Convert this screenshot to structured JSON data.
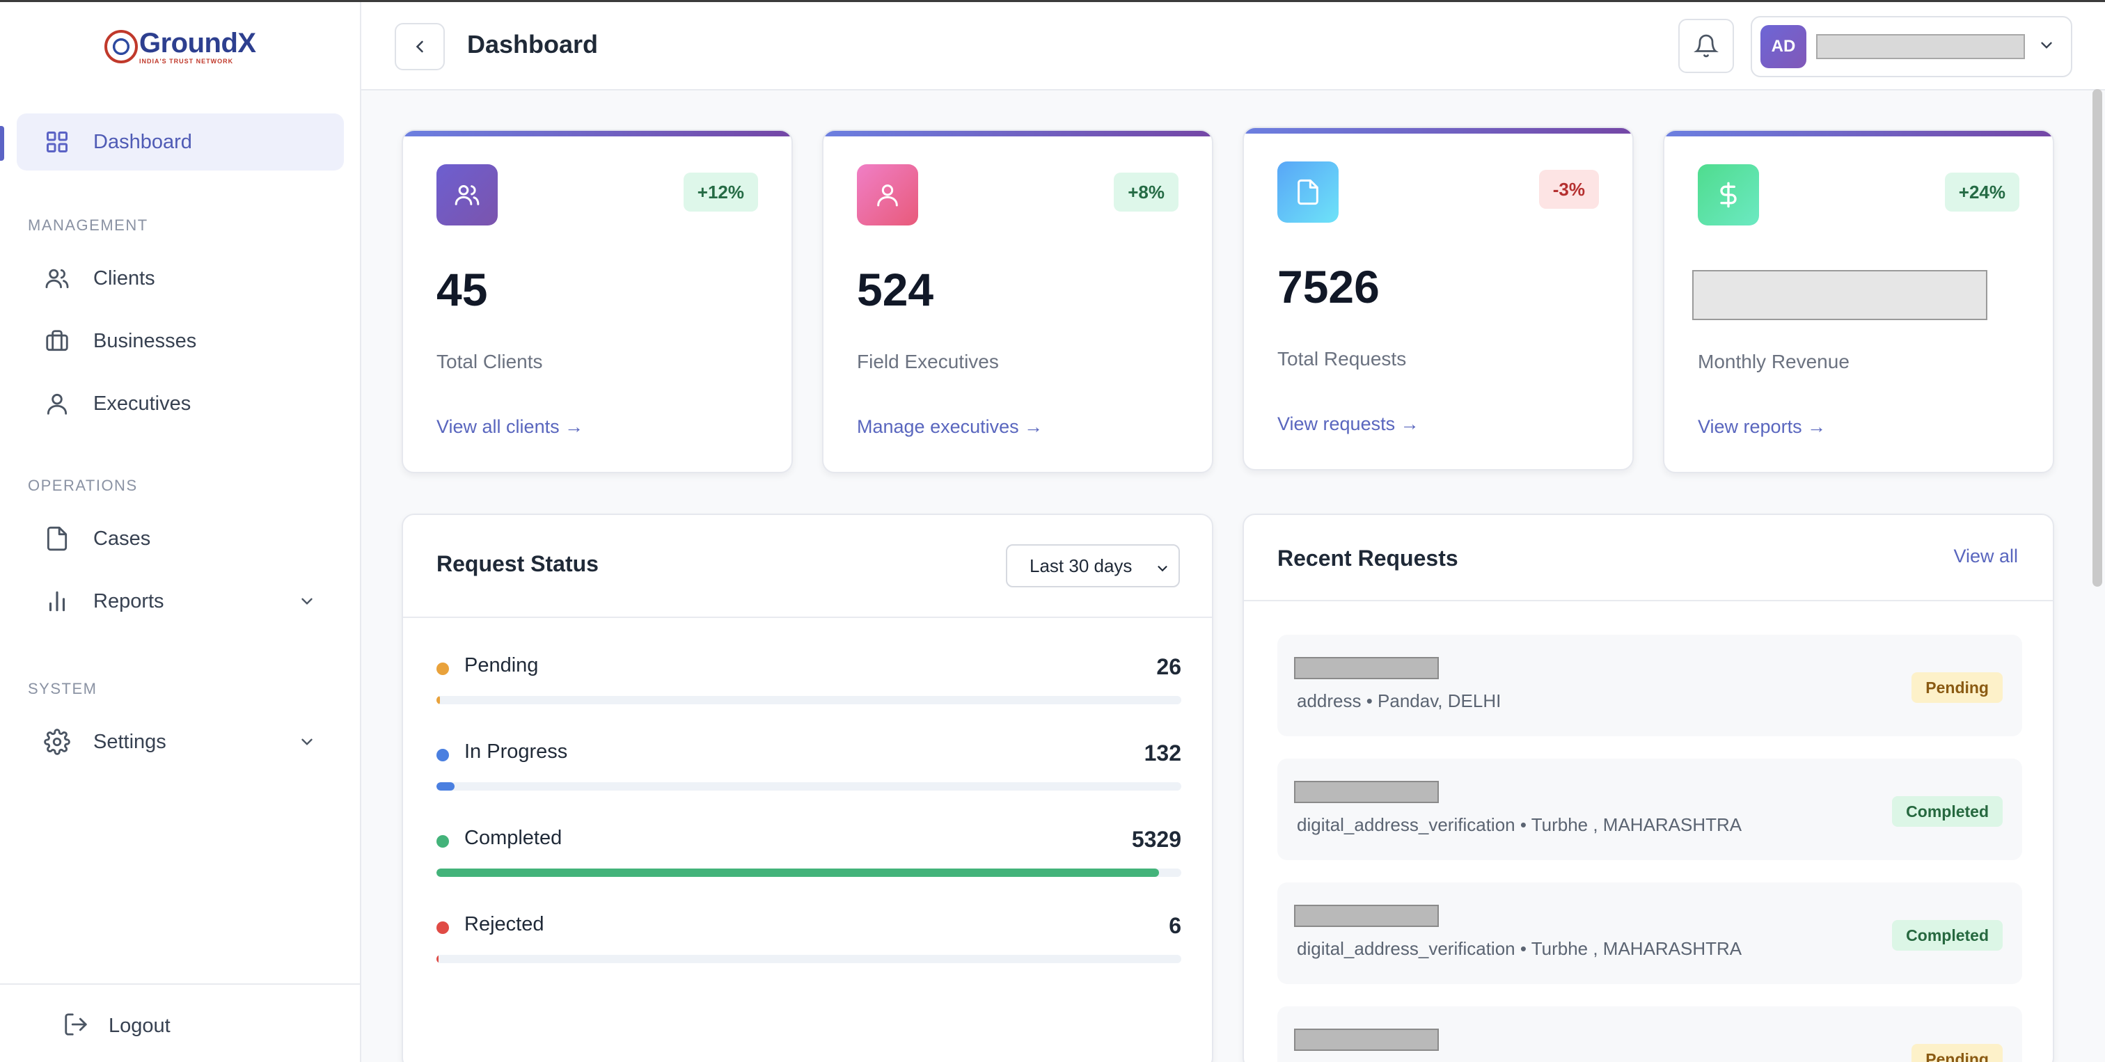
{
  "brand": {
    "name": "GroundX",
    "tagline": "INDIA'S TRUST NETWORK"
  },
  "header": {
    "title": "Dashboard",
    "user_initials": "AD"
  },
  "sidebar": {
    "dashboard": "Dashboard",
    "sections": {
      "management": "MANAGEMENT",
      "operations": "OPERATIONS",
      "system": "SYSTEM"
    },
    "management_items": [
      {
        "label": "Clients",
        "icon": "users-icon"
      },
      {
        "label": "Businesses",
        "icon": "briefcase-icon"
      },
      {
        "label": "Executives",
        "icon": "user-icon"
      }
    ],
    "operations_items": [
      {
        "label": "Cases",
        "icon": "file-icon"
      },
      {
        "label": "Reports",
        "icon": "bar-chart-icon"
      }
    ],
    "system_items": [
      {
        "label": "Settings",
        "icon": "gear-icon"
      }
    ],
    "logout": "Logout"
  },
  "stats": [
    {
      "value": "45",
      "label": "Total Clients",
      "change": "+12%",
      "link": "View all clients →",
      "icon": "users-icon",
      "icon_gradient": [
        "#6d5fd0",
        "#7b54ad"
      ],
      "trend": "up"
    },
    {
      "value": "524",
      "label": "Field Executives",
      "change": "+8%",
      "link": "Manage executives →",
      "icon": "user-icon",
      "icon_gradient": [
        "#f07fc6",
        "#e85a7a"
      ],
      "trend": "up"
    },
    {
      "value": "7526",
      "label": "Total Requests",
      "change": "-3%",
      "link": "View requests →",
      "icon": "file-icon",
      "icon_gradient": [
        "#58a6f7",
        "#6ee3f8"
      ],
      "trend": "down"
    },
    {
      "value": "",
      "label": "Monthly Revenue",
      "change": "+24%",
      "link": "View reports →",
      "icon": "dollar-icon",
      "icon_gradient": [
        "#4fdc8e",
        "#6ce9c2"
      ],
      "trend": "up"
    }
  ],
  "request_status": {
    "title": "Request Status",
    "range": "Last 30 days",
    "items": [
      {
        "name": "Pending",
        "count": "26",
        "color": "#e9a23b",
        "fraction": 0.005
      },
      {
        "name": "In Progress",
        "count": "132",
        "color": "#4a7fe0",
        "fraction": 0.024
      },
      {
        "name": "Completed",
        "count": "5329",
        "color": "#43b37a",
        "fraction": 0.97
      },
      {
        "name": "Rejected",
        "count": "6",
        "color": "#e04b45",
        "fraction": 0.001
      }
    ]
  },
  "recent_requests": {
    "title": "Recent Requests",
    "view_all": "View all",
    "items": [
      {
        "detail": "address • Pandav, DELHI",
        "status": "Pending"
      },
      {
        "detail": "digital_address_verification • Turbhe , MAHARASHTRA",
        "status": "Completed"
      },
      {
        "detail": "digital_address_verification • Turbhe , MAHARASHTRA",
        "status": "Completed"
      },
      {
        "detail": "",
        "status": "Pending"
      }
    ]
  },
  "colors": {
    "accent": "#5b63c5",
    "link": "#5966be",
    "card_topbar": [
      "#6c7fe0",
      "#7447a6"
    ]
  }
}
